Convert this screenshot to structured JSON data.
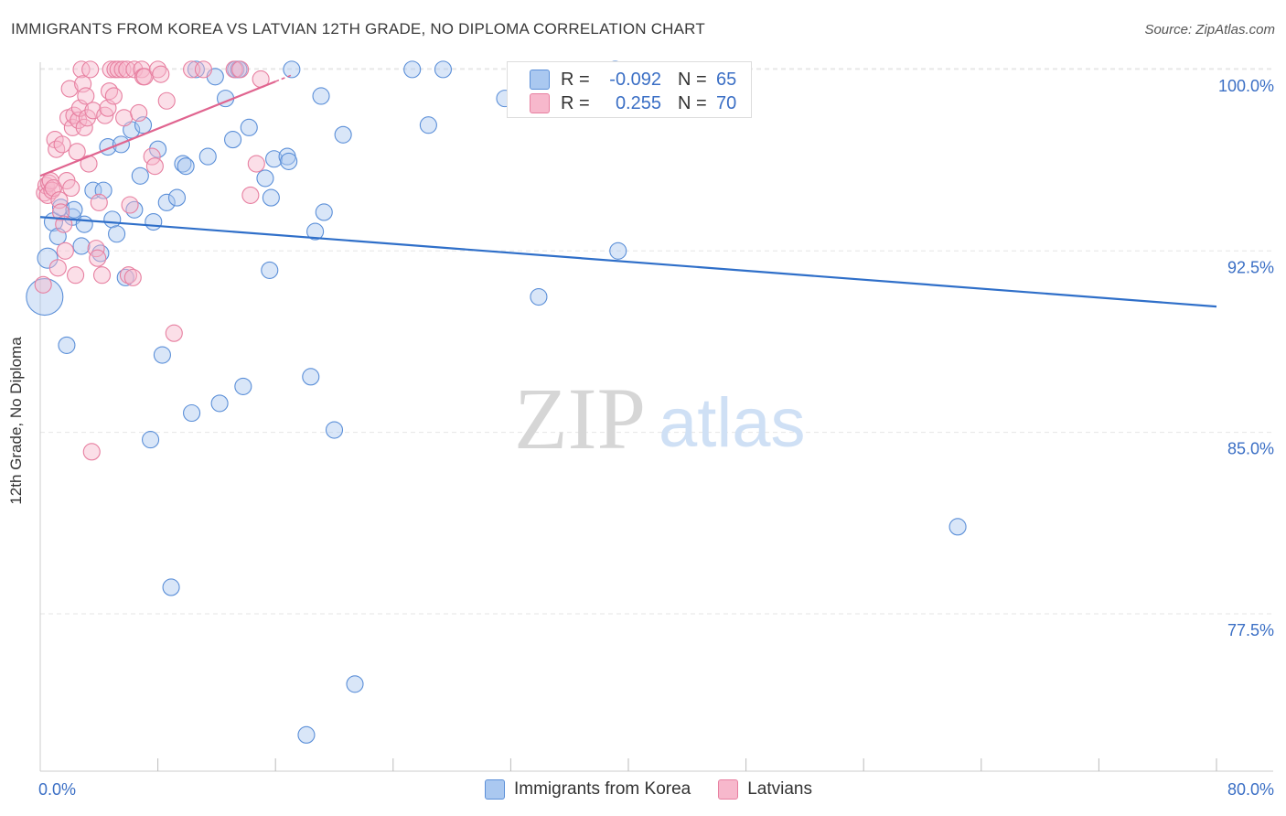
{
  "title": "IMMIGRANTS FROM KOREA VS LATVIAN 12TH GRADE, NO DIPLOMA CORRELATION CHART",
  "source": "Source: ZipAtlas.com",
  "watermark": {
    "zip": "ZIP",
    "atlas": "atlas"
  },
  "colors": {
    "blue_fill": "#aac8f0",
    "blue_stroke": "#5b8fd8",
    "blue_line": "#2f6fc9",
    "pink_fill": "#f7b8cc",
    "pink_stroke": "#e77fa0",
    "pink_line": "#e0648f",
    "axis_text": "#3b6fc5",
    "grid": "#e6e6e6"
  },
  "stats": [
    {
      "swatch": "blue",
      "r_label": "R =",
      "r_value": "-0.092",
      "n_label": "N =",
      "n_value": "65"
    },
    {
      "swatch": "pink",
      "r_label": "R =",
      "r_value": "0.255",
      "n_label": "N =",
      "n_value": "70"
    }
  ],
  "legend": [
    {
      "swatch": "blue",
      "label": "Immigrants from Korea"
    },
    {
      "swatch": "pink",
      "label": "Latvians"
    }
  ],
  "chart_data": {
    "type": "scatter",
    "title": "IMMIGRANTS FROM KOREA VS LATVIAN 12TH GRADE, NO DIPLOMA CORRELATION CHART",
    "xlabel": "",
    "ylabel": "12th Grade, No Diploma",
    "xlim": [
      0,
      80
    ],
    "ylim": [
      71.0,
      100.6
    ],
    "x_tick_labels": [
      {
        "value": 0,
        "label": "0.0%"
      },
      {
        "value": 80,
        "label": "80.0%"
      }
    ],
    "y_tick_labels": [
      {
        "value": 100.0,
        "label": "100.0%"
      },
      {
        "value": 92.5,
        "label": "92.5%"
      },
      {
        "value": 85.0,
        "label": "85.0%"
      },
      {
        "value": 77.5,
        "label": "77.5%"
      }
    ],
    "x_minor_ticks": [
      8,
      16,
      24,
      32,
      40,
      48,
      56,
      64,
      72,
      80
    ],
    "series": [
      {
        "name": "Immigrants from Korea",
        "color": "blue",
        "trend": {
          "x": [
            0,
            80
          ],
          "y": [
            93.9,
            90.2
          ]
        },
        "points": [
          [
            0.3,
            90.6,
            20
          ],
          [
            0.5,
            92.2,
            11
          ],
          [
            0.9,
            93.7,
            10
          ],
          [
            1.2,
            93.1,
            9
          ],
          [
            1.4,
            94.3,
            9
          ],
          [
            1.8,
            88.6,
            9
          ],
          [
            2.2,
            93.9,
            9
          ],
          [
            2.3,
            94.2,
            9
          ],
          [
            2.8,
            92.7,
            9
          ],
          [
            3.0,
            93.6,
            9
          ],
          [
            3.6,
            95.0,
            9
          ],
          [
            4.1,
            92.4,
            9
          ],
          [
            4.3,
            95.0,
            9
          ],
          [
            4.6,
            96.8,
            9
          ],
          [
            4.9,
            93.8,
            9
          ],
          [
            5.2,
            93.2,
            9
          ],
          [
            5.5,
            96.9,
            9
          ],
          [
            5.8,
            91.4,
            9
          ],
          [
            6.2,
            97.5,
            9
          ],
          [
            6.4,
            94.2,
            9
          ],
          [
            6.8,
            95.6,
            9
          ],
          [
            7.0,
            97.7,
            9
          ],
          [
            7.5,
            84.7,
            9
          ],
          [
            7.7,
            93.7,
            9
          ],
          [
            8.0,
            96.7,
            9
          ],
          [
            8.3,
            88.2,
            9
          ],
          [
            8.6,
            94.5,
            9
          ],
          [
            8.9,
            78.6,
            9
          ],
          [
            9.3,
            94.7,
            9
          ],
          [
            9.7,
            96.1,
            9
          ],
          [
            9.9,
            96.0,
            9
          ],
          [
            10.3,
            85.8,
            9
          ],
          [
            10.6,
            100.0,
            9
          ],
          [
            11.4,
            96.4,
            9
          ],
          [
            11.9,
            99.7,
            9
          ],
          [
            12.2,
            86.2,
            9
          ],
          [
            12.6,
            98.8,
            9
          ],
          [
            13.1,
            97.1,
            9
          ],
          [
            13.3,
            100.0,
            9
          ],
          [
            13.5,
            100.0,
            9
          ],
          [
            13.8,
            86.9,
            9
          ],
          [
            14.2,
            97.6,
            9
          ],
          [
            15.3,
            95.5,
            9
          ],
          [
            15.6,
            91.7,
            9
          ],
          [
            15.7,
            94.7,
            9
          ],
          [
            15.9,
            96.3,
            9
          ],
          [
            16.8,
            96.4,
            9
          ],
          [
            16.9,
            96.2,
            9
          ],
          [
            17.1,
            100.0,
            9
          ],
          [
            18.1,
            72.5,
            9
          ],
          [
            18.4,
            87.3,
            9
          ],
          [
            18.7,
            93.3,
            9
          ],
          [
            19.1,
            98.9,
            9
          ],
          [
            19.3,
            94.1,
            9
          ],
          [
            20.0,
            85.1,
            9
          ],
          [
            20.6,
            97.3,
            9
          ],
          [
            21.4,
            74.6,
            9
          ],
          [
            25.3,
            100.0,
            9
          ],
          [
            26.4,
            97.7,
            9
          ],
          [
            27.4,
            100.0,
            9
          ],
          [
            31.6,
            98.8,
            9
          ],
          [
            33.9,
            90.6,
            9
          ],
          [
            39.1,
            100.0,
            9
          ],
          [
            39.3,
            92.5,
            9
          ],
          [
            62.4,
            81.1,
            9
          ]
        ]
      },
      {
        "name": "Latvians",
        "color": "pink",
        "trend": {
          "x": [
            0,
            16
          ],
          "y": [
            95.6,
            99.5
          ],
          "dash_x": [
            16,
            17.2
          ]
        },
        "points": [
          [
            0.2,
            91.1,
            9
          ],
          [
            0.3,
            94.9,
            9
          ],
          [
            0.4,
            95.2,
            9
          ],
          [
            0.5,
            94.8,
            9
          ],
          [
            0.6,
            95.3,
            9
          ],
          [
            0.7,
            95.4,
            9
          ],
          [
            0.8,
            95.0,
            9
          ],
          [
            0.9,
            95.1,
            9
          ],
          [
            1.0,
            97.1,
            9
          ],
          [
            1.1,
            96.7,
            9
          ],
          [
            1.2,
            91.8,
            9
          ],
          [
            1.3,
            94.6,
            9
          ],
          [
            1.4,
            94.1,
            9
          ],
          [
            1.5,
            96.9,
            9
          ],
          [
            1.6,
            93.6,
            9
          ],
          [
            1.7,
            92.5,
            9
          ],
          [
            1.8,
            95.4,
            9
          ],
          [
            1.9,
            98.0,
            9
          ],
          [
            2.0,
            99.2,
            9
          ],
          [
            2.1,
            95.1,
            9
          ],
          [
            2.2,
            97.6,
            9
          ],
          [
            2.3,
            98.1,
            9
          ],
          [
            2.4,
            91.5,
            9
          ],
          [
            2.5,
            96.6,
            9
          ],
          [
            2.6,
            97.9,
            9
          ],
          [
            2.7,
            98.4,
            9
          ],
          [
            2.8,
            100.0,
            9
          ],
          [
            2.9,
            99.4,
            9
          ],
          [
            3.0,
            97.6,
            9
          ],
          [
            3.1,
            98.9,
            9
          ],
          [
            3.2,
            98.0,
            9
          ],
          [
            3.3,
            96.1,
            9
          ],
          [
            3.4,
            100.0,
            9
          ],
          [
            3.5,
            84.2,
            9
          ],
          [
            3.6,
            98.3,
            9
          ],
          [
            3.8,
            92.6,
            9
          ],
          [
            3.9,
            92.2,
            9
          ],
          [
            4.0,
            94.5,
            9
          ],
          [
            4.2,
            91.5,
            9
          ],
          [
            4.4,
            98.1,
            9
          ],
          [
            4.6,
            98.4,
            9
          ],
          [
            4.7,
            99.1,
            9
          ],
          [
            4.8,
            100.0,
            9
          ],
          [
            5.0,
            98.9,
            9
          ],
          [
            5.1,
            100.0,
            9
          ],
          [
            5.3,
            100.0,
            9
          ],
          [
            5.6,
            100.0,
            9
          ],
          [
            5.7,
            98.0,
            9
          ],
          [
            5.9,
            100.0,
            9
          ],
          [
            6.0,
            91.5,
            9
          ],
          [
            6.1,
            94.4,
            9
          ],
          [
            6.3,
            91.4,
            9
          ],
          [
            6.4,
            100.0,
            9
          ],
          [
            6.7,
            98.2,
            9
          ],
          [
            6.9,
            100.0,
            9
          ],
          [
            7.0,
            99.7,
            9
          ],
          [
            7.1,
            99.7,
            9
          ],
          [
            7.6,
            96.4,
            9
          ],
          [
            7.8,
            96.0,
            9
          ],
          [
            8.0,
            100.0,
            9
          ],
          [
            8.2,
            99.8,
            9
          ],
          [
            8.6,
            98.7,
            9
          ],
          [
            9.1,
            89.1,
            9
          ],
          [
            10.3,
            100.0,
            9
          ],
          [
            11.1,
            100.0,
            9
          ],
          [
            13.2,
            100.0,
            9
          ],
          [
            13.6,
            100.0,
            9
          ],
          [
            14.3,
            94.8,
            9
          ],
          [
            14.7,
            96.1,
            9
          ],
          [
            15.0,
            99.6,
            9
          ]
        ]
      }
    ]
  }
}
